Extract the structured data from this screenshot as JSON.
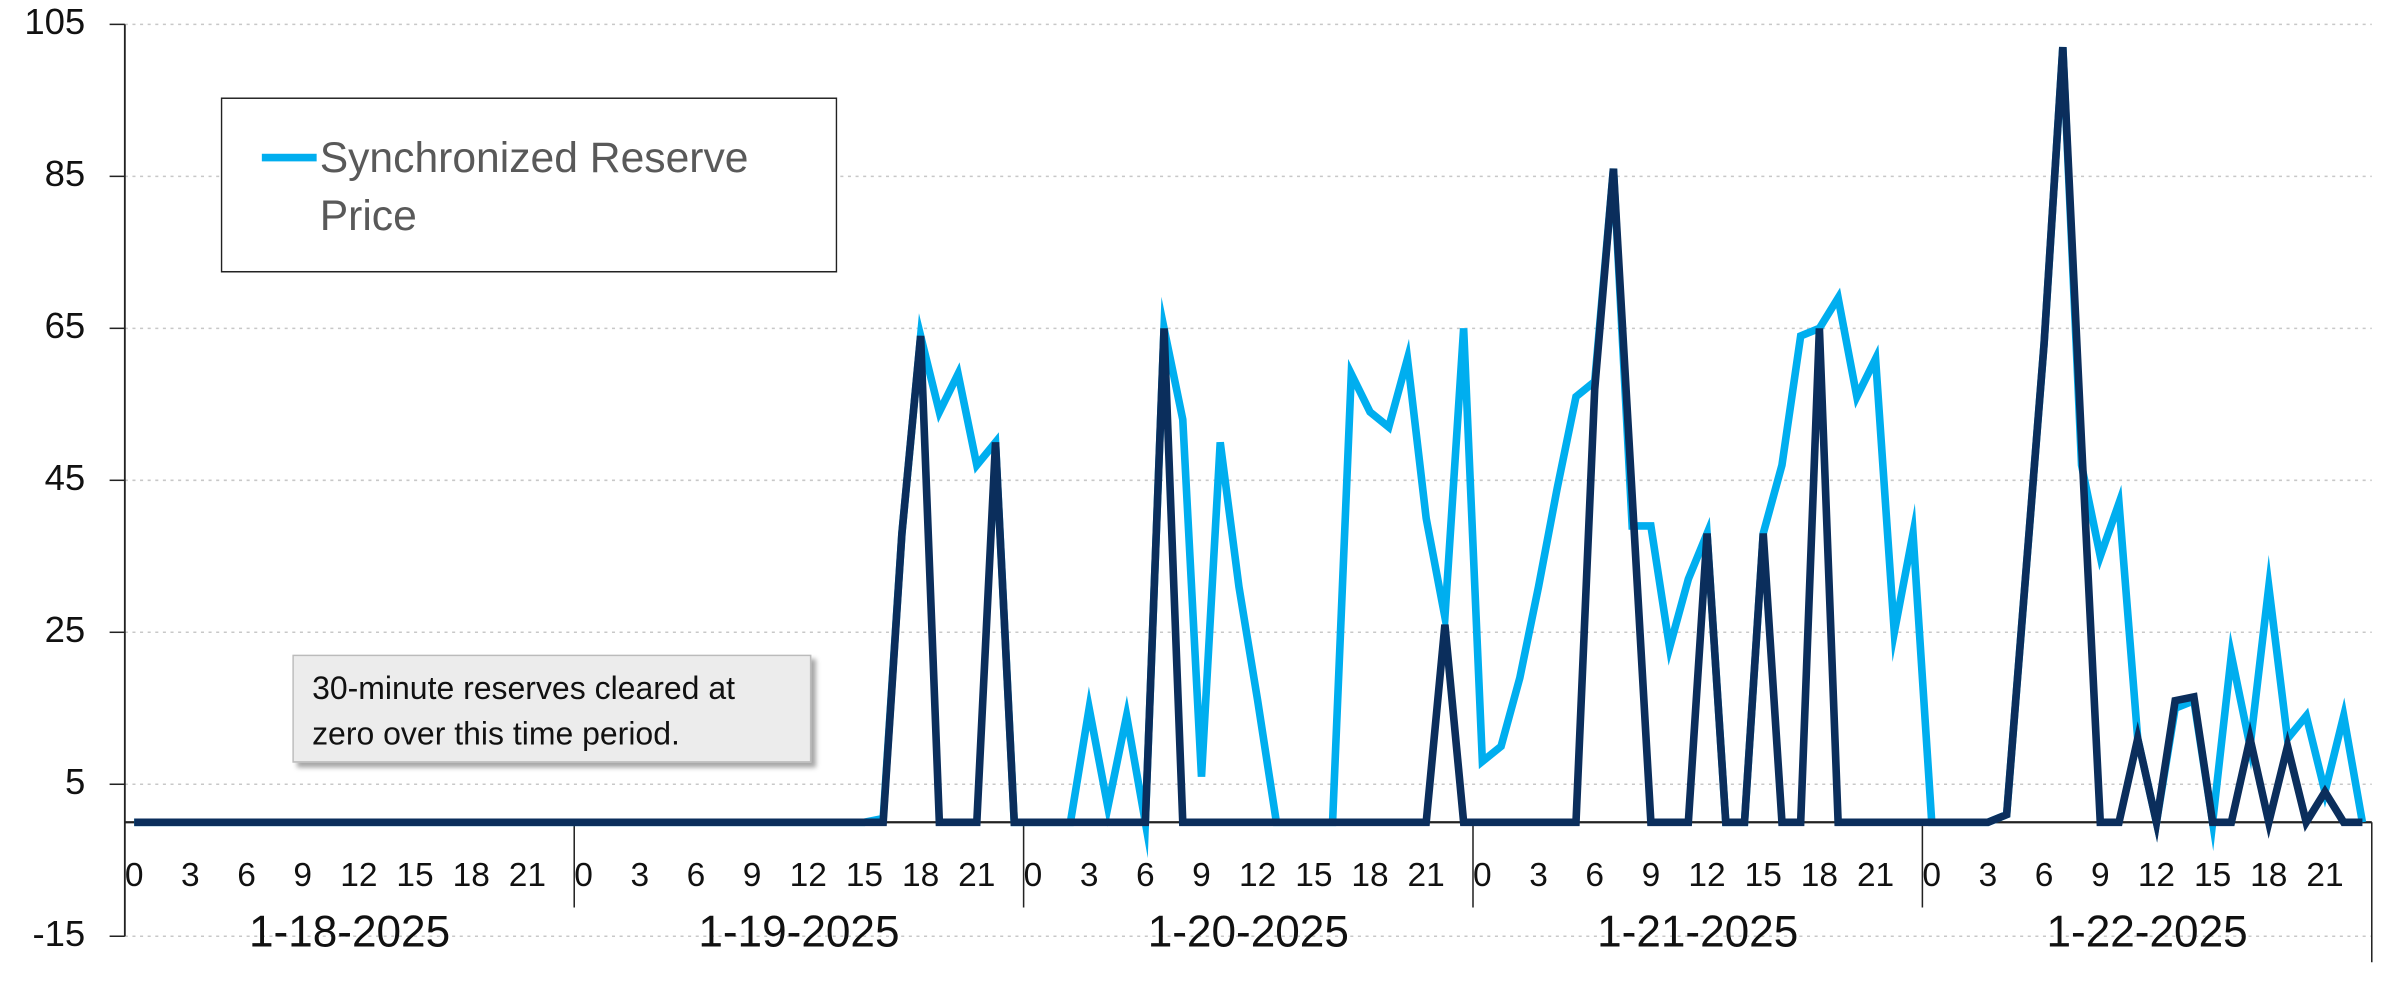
{
  "chart_data": {
    "type": "line",
    "categories": [
      "0",
      null,
      null,
      "3",
      null,
      null,
      "6",
      null,
      null,
      "9",
      null,
      null,
      "12",
      null,
      null,
      "15",
      null,
      null,
      "18",
      null,
      null,
      "21",
      null,
      null,
      "0",
      null,
      null,
      "3",
      null,
      null,
      "6",
      null,
      null,
      "9",
      null,
      null,
      "12",
      null,
      null,
      "15",
      null,
      null,
      "18",
      null,
      null,
      "21",
      null,
      null,
      "0",
      null,
      null,
      "3",
      null,
      null,
      "6",
      null,
      null,
      "9",
      null,
      null,
      "12",
      null,
      null,
      "15",
      null,
      null,
      "18",
      null,
      null,
      "21",
      null,
      null,
      "0",
      null,
      null,
      "3",
      null,
      null,
      "6",
      null,
      null,
      "9",
      null,
      null,
      "12",
      null,
      null,
      "15",
      null,
      null,
      "18",
      null,
      null,
      "21",
      null,
      null,
      "0",
      null,
      null,
      "3",
      null,
      null,
      "6",
      null,
      null,
      "9",
      null,
      null,
      "12",
      null,
      null,
      "15",
      null,
      null,
      "18",
      null,
      null,
      "21",
      null,
      null
    ],
    "groups": [
      "1-18-2025",
      "1-19-2025",
      "1-20-2025",
      "1-21-2025",
      "1-22-2025"
    ],
    "series": [
      {
        "name": "Synchronized Reserve Price",
        "color": "#00aeef",
        "values": [
          0,
          0,
          0,
          0,
          0,
          0,
          0,
          0,
          0,
          0,
          0,
          0,
          0,
          0,
          0,
          0,
          0,
          0,
          0,
          0,
          0,
          0,
          0,
          0,
          0,
          0,
          0,
          0,
          0,
          0,
          0,
          0,
          0,
          0,
          0,
          0,
          0,
          0,
          0,
          0,
          0.5,
          38,
          64,
          54,
          59,
          47,
          50,
          0,
          0,
          0,
          0,
          15,
          2,
          14,
          0,
          65,
          53,
          6,
          50,
          31,
          16,
          0,
          0,
          0,
          0,
          59,
          54,
          52,
          61,
          40,
          27,
          65,
          8,
          10,
          19,
          31,
          44,
          56,
          58,
          86,
          39,
          39,
          23,
          32,
          38,
          0,
          0,
          38,
          47,
          64,
          65,
          69,
          56,
          61,
          25,
          38,
          0,
          0,
          0,
          0,
          1,
          32,
          63,
          102,
          47,
          35,
          42,
          11,
          0,
          15,
          16,
          0,
          22,
          10,
          31,
          11,
          14,
          4,
          14,
          0
        ]
      },
      {
        "color": "#0b2e5c",
        "values": [
          0,
          0,
          0,
          0,
          0,
          0,
          0,
          0,
          0,
          0,
          0,
          0,
          0,
          0,
          0,
          0,
          0,
          0,
          0,
          0,
          0,
          0,
          0,
          0,
          0,
          0,
          0,
          0,
          0,
          0,
          0,
          0,
          0,
          0,
          0,
          0,
          0,
          0,
          0,
          0,
          0,
          38,
          64,
          0,
          0,
          0,
          50,
          0,
          0,
          0,
          0,
          0,
          0,
          0,
          0,
          65,
          0,
          0,
          0,
          0,
          0,
          0,
          0,
          0,
          0,
          0,
          0,
          0,
          0,
          0,
          26,
          0,
          0,
          0,
          0,
          0,
          0,
          0,
          57,
          86,
          43,
          0,
          0,
          0,
          38,
          0,
          0,
          38,
          0,
          0,
          65,
          0,
          0,
          0,
          0,
          0,
          0,
          0,
          0,
          0,
          1,
          32,
          63,
          102,
          50,
          0,
          0,
          11,
          0,
          16,
          16.5,
          0,
          0,
          11,
          0,
          10,
          0,
          4,
          0,
          0
        ]
      }
    ],
    "ylim": [
      -15,
      105
    ],
    "yticks": [
      -15,
      5,
      25,
      45,
      65,
      85,
      105
    ],
    "grid": true,
    "legend_position": "upper left",
    "annotation": "30-minute reserves cleared at zero over this time period."
  }
}
